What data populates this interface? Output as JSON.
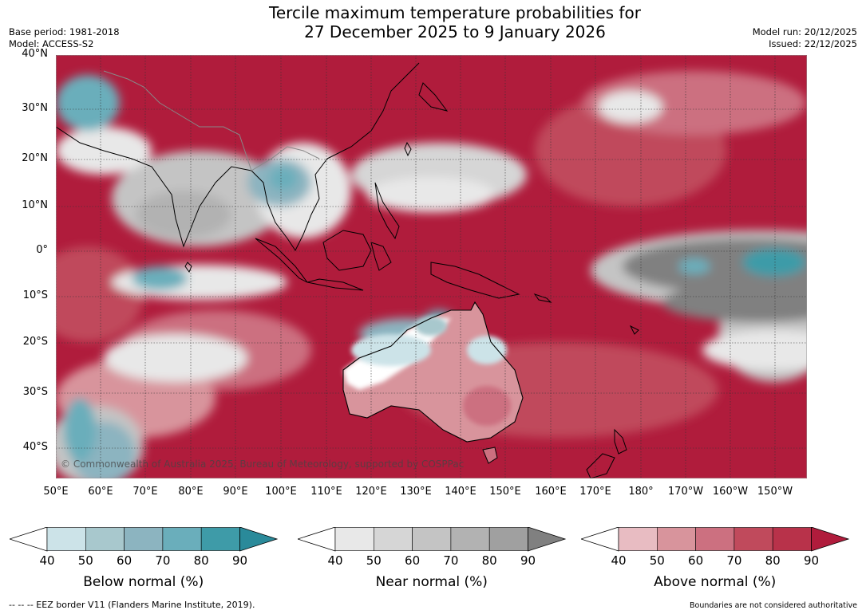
{
  "title_line1": "Tercile maximum temperature probabilities for",
  "title_line2": "27 December 2025 to 9 January 2026",
  "base_period": "Base period: 1981-2018",
  "model": "Model: ACCESS-S2",
  "model_run": "Model run: 20/12/2025",
  "issued": "Issued: 22/12/2025",
  "copyright": "© Commonwealth of Australia 2025, Bureau of Meteorology, supported by COSPPac",
  "lat_labels": [
    "40°N",
    "30°N",
    "20°N",
    "10°N",
    "0°",
    "10°S",
    "20°S",
    "30°S",
    "40°S"
  ],
  "lon_labels": [
    "50°E",
    "60°E",
    "70°E",
    "80°E",
    "90°E",
    "100°E",
    "110°E",
    "120°E",
    "130°E",
    "140°E",
    "150°E",
    "160°E",
    "170°E",
    "180°",
    "170°W",
    "160°W",
    "150°W"
  ],
  "colorbars": [
    {
      "title": "Below normal (%)",
      "ticks": [
        "40",
        "50",
        "60",
        "70",
        "80",
        "90"
      ],
      "colors": [
        "#ffffff",
        "#cce3e8",
        "#a8c8cd",
        "#8cb4c0",
        "#6aaebb",
        "#3e9ba8",
        "#2a8a9a"
      ]
    },
    {
      "title": "Near normal (%)",
      "ticks": [
        "40",
        "50",
        "60",
        "70",
        "80",
        "90"
      ],
      "colors": [
        "#ffffff",
        "#e8e8e8",
        "#d6d6d6",
        "#c4c4c4",
        "#b2b2b2",
        "#a0a0a0",
        "#808080"
      ]
    },
    {
      "title": "Above normal (%)",
      "ticks": [
        "40",
        "50",
        "60",
        "70",
        "80",
        "90"
      ],
      "colors": [
        "#ffffff",
        "#e8bcc2",
        "#d8949c",
        "#cc7080",
        "#c04a5c",
        "#b8324a",
        "#b01c3c"
      ]
    }
  ],
  "footer_left": "--  --  -- EEZ border V11 (Flanders Marine Institute, 2019).",
  "footer_right": "Boundaries are not considered authoritative"
}
